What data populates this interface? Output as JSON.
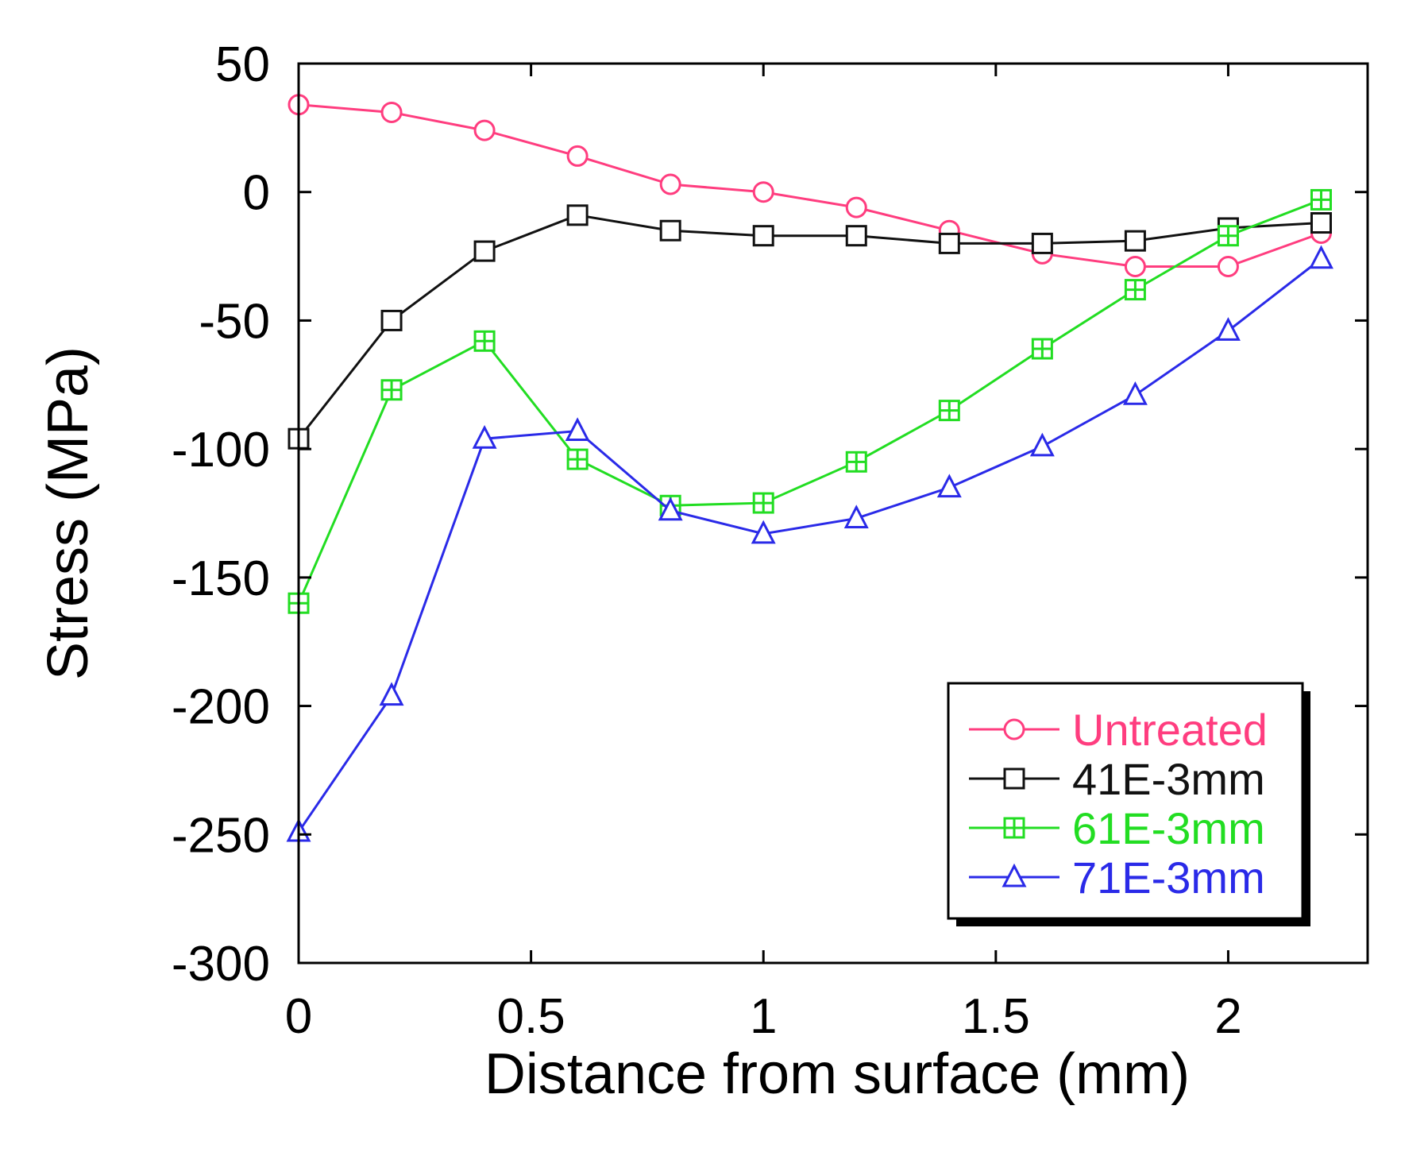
{
  "chart_data": {
    "type": "line",
    "title": "",
    "xlabel": "Distance from surface (mm)",
    "ylabel": "Stress (MPa)",
    "xlim": [
      0,
      2.3
    ],
    "ylim": [
      -300,
      50
    ],
    "xticks": [
      0,
      0.5,
      1,
      1.5,
      2
    ],
    "xtick_labels": [
      "0",
      "0.5",
      "1",
      "1.5",
      "2"
    ],
    "yticks": [
      50,
      0,
      -50,
      -100,
      -150,
      -200,
      -250,
      -300
    ],
    "ytick_labels": [
      "50",
      "0",
      "-50",
      "-100",
      "-150",
      "-200",
      "-250",
      "-300"
    ],
    "grid": false,
    "legend_position": "bottom-right",
    "x": [
      0,
      0.2,
      0.4,
      0.6,
      0.8,
      1.0,
      1.2,
      1.4,
      1.6,
      1.8,
      2.0,
      2.2
    ],
    "series": [
      {
        "name": "Untreated",
        "color": "#ff3d7f",
        "marker": "circle",
        "values": [
          34,
          31,
          24,
          14,
          3,
          0,
          -6,
          -15,
          -24,
          -29,
          -29,
          -16
        ]
      },
      {
        "name": "41E-3mm",
        "color": "#111111",
        "marker": "square",
        "values": [
          -96,
          -50,
          -23,
          -9,
          -15,
          -17,
          -17,
          -20,
          -20,
          -19,
          -14,
          -12
        ]
      },
      {
        "name": "61E-3mm",
        "color": "#22dd22",
        "marker": "square-plus",
        "values": [
          -160,
          -77,
          -58,
          -104,
          -122,
          -121,
          -105,
          -85,
          -61,
          -38,
          -17,
          -3
        ]
      },
      {
        "name": "71E-3mm",
        "color": "#2a2ae8",
        "marker": "triangle",
        "values": [
          -249,
          -196,
          -96,
          -93,
          -124,
          -133,
          -127,
          -115,
          -99,
          -79,
          -54,
          -26
        ]
      }
    ]
  }
}
